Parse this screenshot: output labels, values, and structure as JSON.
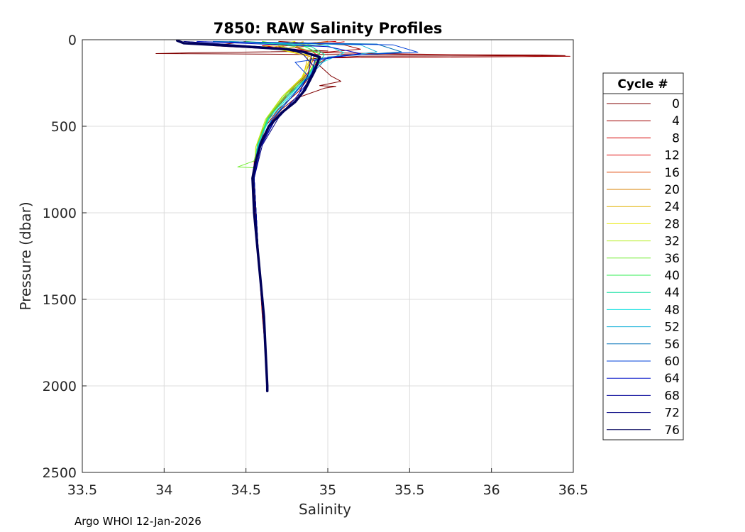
{
  "footer": "Argo WHOI 12-Jan-2026",
  "chart_data": {
    "type": "line",
    "title": "7850: RAW Salinity Profiles",
    "xlabel": "Salinity",
    "ylabel": "Pressure (dbar)",
    "xlim": [
      33.5,
      36.5
    ],
    "ylim": [
      0,
      2500
    ],
    "y_reversed": true,
    "xticks": [
      "33.5",
      "34",
      "34.5",
      "35",
      "35.5",
      "36",
      "36.5"
    ],
    "yticks": [
      "0",
      "500",
      "1000",
      "1500",
      "2000",
      "2500"
    ],
    "grid": true,
    "legend": {
      "title": "Cycle #",
      "placement": "outside-right",
      "entries": [
        {
          "label": "0",
          "color": "#800000"
        },
        {
          "label": "4",
          "color": "#a00000"
        },
        {
          "label": "8",
          "color": "#d40000"
        },
        {
          "label": "12",
          "color": "#e01010"
        },
        {
          "label": "16",
          "color": "#e04400"
        },
        {
          "label": "20",
          "color": "#d88000"
        },
        {
          "label": "24",
          "color": "#e0b000"
        },
        {
          "label": "28",
          "color": "#e8e800"
        },
        {
          "label": "32",
          "color": "#b4ee20"
        },
        {
          "label": "36",
          "color": "#70ee30"
        },
        {
          "label": "40",
          "color": "#30ee50"
        },
        {
          "label": "44",
          "color": "#10e0a0"
        },
        {
          "label": "48",
          "color": "#10e0e0"
        },
        {
          "label": "52",
          "color": "#10b0d8"
        },
        {
          "label": "56",
          "color": "#0070b8"
        },
        {
          "label": "60",
          "color": "#0040d8"
        },
        {
          "label": "64",
          "color": "#0010c8"
        },
        {
          "label": "68",
          "color": "#000098"
        },
        {
          "label": "72",
          "color": "#000080"
        },
        {
          "label": "76",
          "color": "#00005a"
        }
      ]
    },
    "series": [
      {
        "name": "0",
        "color": "#800000",
        "points": [
          [
            34.5,
            10
          ],
          [
            34.3,
            35
          ],
          [
            34.6,
            50
          ],
          [
            35.0,
            65
          ],
          [
            34.2,
            75
          ],
          [
            33.95,
            80
          ],
          [
            34.4,
            82
          ],
          [
            34.85,
            85
          ],
          [
            36.3,
            88
          ],
          [
            36.45,
            92
          ],
          [
            35.2,
            95
          ],
          [
            34.9,
            110
          ],
          [
            34.95,
            150
          ],
          [
            35.02,
            210
          ],
          [
            35.08,
            240
          ],
          [
            34.95,
            265
          ],
          [
            35.05,
            270
          ],
          [
            34.98,
            280
          ],
          [
            34.8,
            340
          ],
          [
            34.72,
            400
          ],
          [
            34.65,
            480
          ],
          [
            34.58,
            600
          ],
          [
            34.55,
            720
          ],
          [
            34.54,
            800
          ],
          [
            34.56,
            1000
          ],
          [
            34.58,
            1300
          ],
          [
            34.6,
            1600
          ],
          [
            34.62,
            1800
          ],
          [
            34.63,
            2000
          ]
        ]
      },
      {
        "name": "4",
        "color": "#a00000",
        "points": [
          [
            34.7,
            10
          ],
          [
            35.1,
            30
          ],
          [
            35.2,
            55
          ],
          [
            34.95,
            75
          ],
          [
            36.48,
            96
          ],
          [
            35.0,
            105
          ],
          [
            34.92,
            150
          ],
          [
            34.9,
            200
          ],
          [
            34.82,
            300
          ],
          [
            34.7,
            400
          ],
          [
            34.62,
            500
          ],
          [
            34.57,
            650
          ],
          [
            34.54,
            800
          ],
          [
            34.56,
            1000
          ],
          [
            34.59,
            1400
          ],
          [
            34.62,
            1800
          ],
          [
            34.63,
            2000
          ]
        ]
      },
      {
        "name": "8",
        "color": "#d40000",
        "points": [
          [
            35.05,
            10
          ],
          [
            34.6,
            35
          ],
          [
            34.9,
            65
          ],
          [
            34.95,
            100
          ],
          [
            34.9,
            180
          ],
          [
            34.8,
            280
          ],
          [
            34.68,
            400
          ],
          [
            34.6,
            520
          ],
          [
            34.55,
            700
          ],
          [
            34.55,
            900
          ],
          [
            34.58,
            1300
          ],
          [
            34.62,
            1800
          ],
          [
            34.63,
            2000
          ]
        ]
      },
      {
        "name": "12",
        "color": "#e01010",
        "points": [
          [
            35.1,
            12
          ],
          [
            34.8,
            45
          ],
          [
            34.95,
            80
          ],
          [
            34.9,
            170
          ],
          [
            34.78,
            290
          ],
          [
            34.66,
            420
          ],
          [
            34.58,
            580
          ],
          [
            34.55,
            800
          ],
          [
            34.57,
            1200
          ],
          [
            34.61,
            1700
          ],
          [
            34.63,
            2000
          ]
        ]
      },
      {
        "name": "16",
        "color": "#e04400",
        "points": [
          [
            35.0,
            10
          ],
          [
            34.7,
            40
          ],
          [
            34.92,
            90
          ],
          [
            34.88,
            190
          ],
          [
            34.76,
            300
          ],
          [
            34.65,
            430
          ],
          [
            34.58,
            590
          ],
          [
            34.55,
            800
          ],
          [
            34.58,
            1300
          ],
          [
            34.62,
            1800
          ],
          [
            34.63,
            2000
          ]
        ]
      },
      {
        "name": "20",
        "color": "#d88000",
        "points": [
          [
            34.95,
            14
          ],
          [
            34.75,
            50
          ],
          [
            34.9,
            100
          ],
          [
            34.86,
            200
          ],
          [
            34.75,
            310
          ],
          [
            34.64,
            440
          ],
          [
            34.57,
            600
          ],
          [
            34.55,
            800
          ],
          [
            34.58,
            1300
          ],
          [
            34.62,
            1800
          ]
        ]
      },
      {
        "name": "24",
        "color": "#e0b000",
        "points": [
          [
            34.85,
            12
          ],
          [
            34.65,
            45
          ],
          [
            34.88,
            95
          ],
          [
            34.85,
            210
          ],
          [
            34.73,
            320
          ],
          [
            34.63,
            450
          ],
          [
            34.57,
            610
          ],
          [
            34.55,
            800
          ],
          [
            34.58,
            1300
          ],
          [
            34.62,
            1800
          ]
        ]
      },
      {
        "name": "28",
        "color": "#e8e800",
        "points": [
          [
            34.8,
            10
          ],
          [
            34.6,
            40
          ],
          [
            34.9,
            90
          ],
          [
            34.84,
            220
          ],
          [
            34.72,
            330
          ],
          [
            34.62,
            460
          ],
          [
            34.56,
            620
          ],
          [
            34.55,
            800
          ],
          [
            34.58,
            1300
          ],
          [
            34.62,
            1800
          ]
        ]
      },
      {
        "name": "32",
        "color": "#b4ee20",
        "points": [
          [
            34.7,
            12
          ],
          [
            34.7,
            35
          ],
          [
            34.92,
            85
          ],
          [
            34.85,
            215
          ],
          [
            34.72,
            330
          ],
          [
            34.62,
            460
          ],
          [
            34.56,
            620
          ],
          [
            34.55,
            800
          ],
          [
            34.58,
            1300
          ],
          [
            34.62,
            1800
          ]
        ]
      },
      {
        "name": "36",
        "color": "#70ee30",
        "points": [
          [
            34.6,
            10
          ],
          [
            34.8,
            40
          ],
          [
            34.95,
            80
          ],
          [
            34.88,
            200
          ],
          [
            34.74,
            320
          ],
          [
            34.63,
            450
          ],
          [
            34.57,
            610
          ],
          [
            34.55,
            700
          ],
          [
            34.45,
            735
          ],
          [
            34.55,
            740
          ],
          [
            34.55,
            800
          ],
          [
            34.58,
            1300
          ],
          [
            34.62,
            1800
          ]
        ]
      },
      {
        "name": "40",
        "color": "#30ee50",
        "points": [
          [
            34.5,
            10
          ],
          [
            34.85,
            35
          ],
          [
            34.95,
            80
          ],
          [
            34.88,
            210
          ],
          [
            34.74,
            330
          ],
          [
            34.63,
            460
          ],
          [
            34.57,
            620
          ],
          [
            34.55,
            800
          ],
          [
            34.58,
            1300
          ],
          [
            34.6,
            1500
          ],
          [
            34.62,
            1800
          ]
        ]
      },
      {
        "name": "44",
        "color": "#10e0a0",
        "points": [
          [
            34.45,
            12
          ],
          [
            34.9,
            40
          ],
          [
            34.98,
            85
          ],
          [
            34.9,
            200
          ],
          [
            34.76,
            320
          ],
          [
            34.64,
            450
          ],
          [
            34.57,
            610
          ],
          [
            34.55,
            800
          ],
          [
            34.58,
            1300
          ],
          [
            34.62,
            1800
          ]
        ]
      },
      {
        "name": "48",
        "color": "#10e0e0",
        "points": [
          [
            34.4,
            10
          ],
          [
            35.0,
            35
          ],
          [
            35.1,
            75
          ],
          [
            34.92,
            150
          ],
          [
            34.88,
            210
          ],
          [
            34.76,
            330
          ],
          [
            34.64,
            460
          ],
          [
            34.57,
            620
          ],
          [
            34.55,
            800
          ],
          [
            34.58,
            1300
          ],
          [
            34.62,
            1800
          ]
        ]
      },
      {
        "name": "52",
        "color": "#10b0d8",
        "points": [
          [
            34.35,
            12
          ],
          [
            35.2,
            30
          ],
          [
            35.3,
            70
          ],
          [
            34.95,
            110
          ],
          [
            34.88,
            220
          ],
          [
            34.76,
            340
          ],
          [
            34.65,
            470
          ],
          [
            34.57,
            630
          ],
          [
            34.55,
            800
          ],
          [
            34.58,
            1300
          ],
          [
            34.62,
            1800
          ]
        ]
      },
      {
        "name": "56",
        "color": "#0070b8",
        "points": [
          [
            34.3,
            10
          ],
          [
            35.3,
            25
          ],
          [
            35.45,
            70
          ],
          [
            35.0,
            100
          ],
          [
            34.9,
            200
          ],
          [
            34.78,
            330
          ],
          [
            34.66,
            460
          ],
          [
            34.58,
            620
          ],
          [
            34.55,
            800
          ],
          [
            34.58,
            1300
          ],
          [
            34.62,
            1800
          ],
          [
            34.63,
            2000
          ]
        ]
      },
      {
        "name": "60",
        "color": "#0040d8",
        "points": [
          [
            34.25,
            12
          ],
          [
            35.4,
            30
          ],
          [
            35.55,
            72
          ],
          [
            35.1,
            90
          ],
          [
            34.8,
            130
          ],
          [
            34.88,
            210
          ],
          [
            34.78,
            330
          ],
          [
            34.66,
            460
          ],
          [
            34.58,
            620
          ],
          [
            34.55,
            800
          ],
          [
            34.58,
            1300
          ],
          [
            34.62,
            1800
          ],
          [
            34.63,
            2000
          ]
        ]
      },
      {
        "name": "64",
        "color": "#0010c8",
        "points": [
          [
            34.2,
            10
          ],
          [
            35.0,
            40
          ],
          [
            35.2,
            80
          ],
          [
            34.92,
            120
          ],
          [
            34.9,
            220
          ],
          [
            34.8,
            340
          ],
          [
            34.67,
            470
          ],
          [
            34.58,
            630
          ],
          [
            34.55,
            800
          ],
          [
            34.58,
            1300
          ],
          [
            34.62,
            1800
          ],
          [
            34.63,
            2000
          ]
        ]
      },
      {
        "name": "68",
        "color": "#000098",
        "points": [
          [
            34.15,
            12
          ],
          [
            34.8,
            55
          ],
          [
            34.9,
            90
          ],
          [
            34.88,
            200
          ],
          [
            34.82,
            320
          ],
          [
            34.68,
            460
          ],
          [
            34.59,
            620
          ],
          [
            34.55,
            800
          ],
          [
            34.58,
            1300
          ],
          [
            34.62,
            1800
          ],
          [
            34.63,
            2000
          ]
        ]
      },
      {
        "name": "72",
        "color": "#000080",
        "points": [
          [
            34.12,
            10
          ],
          [
            34.75,
            50
          ],
          [
            34.85,
            85
          ],
          [
            34.92,
            160
          ],
          [
            34.84,
            310
          ],
          [
            34.7,
            450
          ],
          [
            34.6,
            610
          ],
          [
            34.55,
            800
          ],
          [
            34.58,
            1300
          ],
          [
            34.62,
            1800
          ],
          [
            34.63,
            2000
          ]
        ]
      },
      {
        "name": "76",
        "color": "#00005a",
        "bold": true,
        "points": [
          [
            34.08,
            5
          ],
          [
            34.12,
            20
          ],
          [
            34.5,
            40
          ],
          [
            34.75,
            55
          ],
          [
            34.85,
            70
          ],
          [
            34.95,
            100
          ],
          [
            34.92,
            180
          ],
          [
            34.86,
            290
          ],
          [
            34.8,
            360
          ],
          [
            34.72,
            420
          ],
          [
            34.64,
            500
          ],
          [
            34.59,
            600
          ],
          [
            34.56,
            700
          ],
          [
            34.54,
            800
          ],
          [
            34.55,
            1000
          ],
          [
            34.57,
            1200
          ],
          [
            34.59,
            1400
          ],
          [
            34.61,
            1600
          ],
          [
            34.62,
            1800
          ],
          [
            34.63,
            2000
          ],
          [
            34.63,
            2030
          ]
        ]
      }
    ]
  }
}
